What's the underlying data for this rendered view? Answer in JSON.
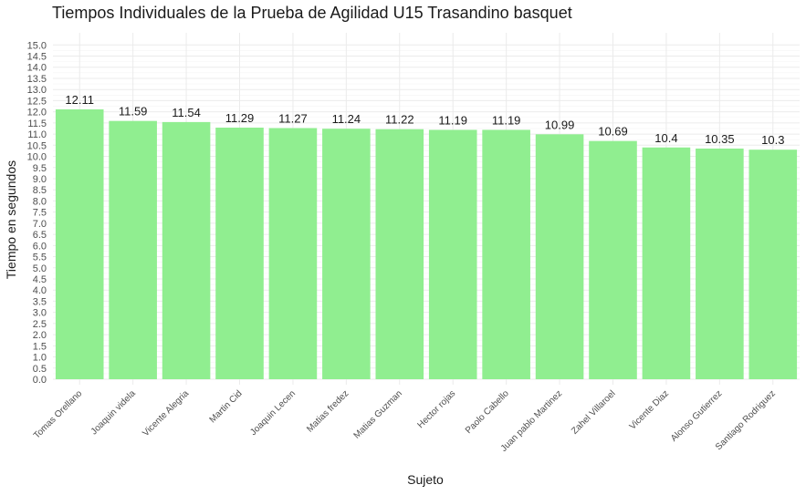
{
  "chart_data": {
    "type": "bar",
    "title": "Tiempos Individuales de la Prueba de Agilidad U15 Trasandino basquet",
    "xlabel": "Sujeto",
    "ylabel": "Tiempo en segundos",
    "categories": [
      "Tomas Orellano",
      "Joaquin videla",
      "Vicente Alegria",
      "Martin Cid",
      "Joaquin Lecen",
      "Matias fredez",
      "Matias Guzman",
      "Hector rojas",
      "Paolo Cabello",
      "Juan pablo Martinez",
      "Zahel Villaroel",
      "Vicente Diaz",
      "Alonso Gutierrez",
      "Santiago Rodriguez"
    ],
    "values": [
      12.11,
      11.59,
      11.54,
      11.29,
      11.27,
      11.24,
      11.22,
      11.19,
      11.19,
      10.99,
      10.69,
      10.4,
      10.35,
      10.3
    ],
    "value_labels": [
      "12.11",
      "11.59",
      "11.54",
      "11.29",
      "11.27",
      "11.24",
      "11.22",
      "11.19",
      "11.19",
      "10.99",
      "10.69",
      "10.4",
      "10.35",
      "10.3"
    ],
    "ylim": [
      0,
      15
    ],
    "yticks": [
      "0.0",
      "0.5",
      "1.0",
      "1.5",
      "2.0",
      "2.5",
      "3.0",
      "3.5",
      "4.0",
      "4.5",
      "5.0",
      "5.5",
      "6.0",
      "6.5",
      "7.0",
      "7.5",
      "8.0",
      "8.5",
      "9.0",
      "9.5",
      "10.0",
      "10.5",
      "11.0",
      "11.5",
      "12.0",
      "12.5",
      "13.0",
      "13.5",
      "14.0",
      "14.5",
      "15.0"
    ],
    "grid": true,
    "legend": "none",
    "bar_color": "#90EE90",
    "grid_color": "#ebebeb"
  }
}
